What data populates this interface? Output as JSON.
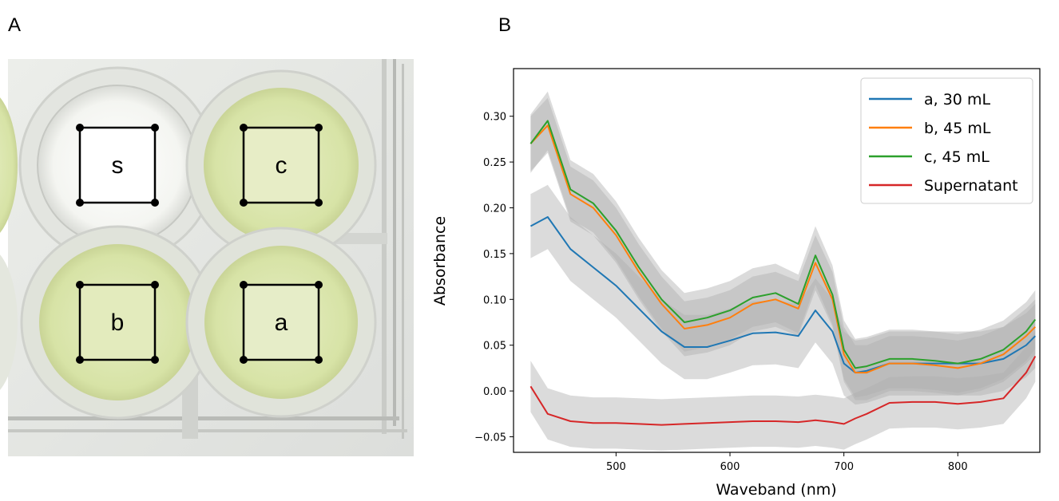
{
  "panels": {
    "left_label": "A",
    "right_label": "B"
  },
  "photo": {
    "wells": [
      {
        "label": "s",
        "fill": "#f6f7f2",
        "roi_fill": "#ffffff"
      },
      {
        "label": "c",
        "fill": "#dfe8b7",
        "roi_fill": "#e7edc6"
      },
      {
        "label": "b",
        "fill": "#dbe6ac",
        "roi_fill": "#e3ebbd"
      },
      {
        "label": "a",
        "fill": "#dfe8b8",
        "roi_fill": "#e6edc8"
      }
    ]
  },
  "chart_data": {
    "type": "line",
    "xlabel": "Waveband (nm)",
    "ylabel": "Absorbance",
    "xlim": [
      410,
      872
    ],
    "ylim": [
      -0.067,
      0.352
    ],
    "xticks": [
      500,
      600,
      700,
      800
    ],
    "yticks": [
      -0.05,
      0.0,
      0.05,
      0.1,
      0.15,
      0.2,
      0.25,
      0.3
    ],
    "ytick_labels": [
      "−0.05",
      "0.00",
      "0.05",
      "0.10",
      "0.15",
      "0.20",
      "0.25",
      "0.30"
    ],
    "grid": false,
    "legend_position": "top-right",
    "x": [
      425,
      440,
      460,
      480,
      500,
      520,
      540,
      560,
      580,
      600,
      620,
      640,
      660,
      675,
      690,
      700,
      710,
      720,
      740,
      760,
      780,
      800,
      820,
      840,
      860,
      868
    ],
    "series": [
      {
        "name": "a, 30 mL",
        "color": "#1f77b4",
        "band": 0.035,
        "values": [
          0.18,
          0.19,
          0.155,
          0.135,
          0.115,
          0.09,
          0.065,
          0.048,
          0.048,
          0.055,
          0.063,
          0.064,
          0.06,
          0.088,
          0.065,
          0.03,
          0.02,
          0.022,
          0.03,
          0.03,
          0.03,
          0.03,
          0.03,
          0.035,
          0.05,
          0.06
        ]
      },
      {
        "name": "b, 45 mL",
        "color": "#ff7f0e",
        "band": 0.03,
        "values": [
          0.27,
          0.29,
          0.215,
          0.2,
          0.17,
          0.13,
          0.095,
          0.068,
          0.072,
          0.08,
          0.095,
          0.1,
          0.09,
          0.14,
          0.1,
          0.04,
          0.02,
          0.02,
          0.03,
          0.03,
          0.028,
          0.025,
          0.03,
          0.04,
          0.06,
          0.07
        ]
      },
      {
        "name": "c, 45 mL",
        "color": "#2ca02c",
        "band": 0.032,
        "values": [
          0.27,
          0.295,
          0.22,
          0.205,
          0.175,
          0.135,
          0.1,
          0.075,
          0.08,
          0.088,
          0.102,
          0.107,
          0.095,
          0.148,
          0.105,
          0.045,
          0.025,
          0.027,
          0.035,
          0.035,
          0.033,
          0.03,
          0.035,
          0.045,
          0.065,
          0.078
        ]
      },
      {
        "name": "Supernatant",
        "color": "#d62728",
        "band": 0.028,
        "values": [
          0.005,
          -0.025,
          -0.033,
          -0.035,
          -0.035,
          -0.036,
          -0.037,
          -0.036,
          -0.035,
          -0.034,
          -0.033,
          -0.033,
          -0.034,
          -0.032,
          -0.034,
          -0.036,
          -0.03,
          -0.025,
          -0.013,
          -0.012,
          -0.012,
          -0.014,
          -0.012,
          -0.008,
          0.02,
          0.038
        ]
      }
    ]
  }
}
